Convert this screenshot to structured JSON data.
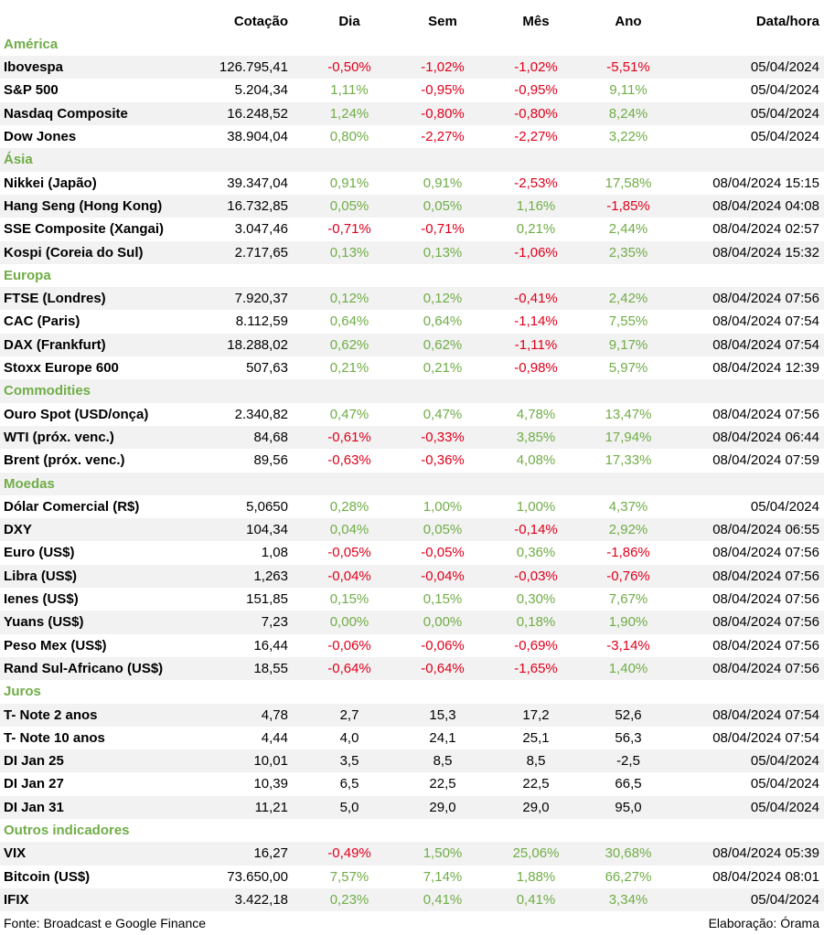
{
  "columns": {
    "cotacao": "Cotação",
    "dia": "Dia",
    "sem": "Sem",
    "mes": "Mês",
    "ano": "Ano",
    "data_hora": "Data/hora"
  },
  "colors": {
    "positive": "#70ad47",
    "negative": "#e0001b",
    "section": "#70ad47",
    "stripe": "#f2f2f2"
  },
  "sections": [
    {
      "title": "América",
      "rows": [
        {
          "name": "Ibovespa",
          "cotacao": "126.795,41",
          "dia": "-0,50%",
          "sem": "-1,02%",
          "mes": "-1,02%",
          "ano": "-5,51%",
          "data": "05/04/2024"
        },
        {
          "name": "S&P 500",
          "cotacao": "5.204,34",
          "dia": "1,11%",
          "sem": "-0,95%",
          "mes": "-0,95%",
          "ano": "9,11%",
          "data": "05/04/2024"
        },
        {
          "name": "Nasdaq Composite",
          "cotacao": "16.248,52",
          "dia": "1,24%",
          "sem": "-0,80%",
          "mes": "-0,80%",
          "ano": "8,24%",
          "data": "05/04/2024"
        },
        {
          "name": "Dow Jones",
          "cotacao": "38.904,04",
          "dia": "0,80%",
          "sem": "-2,27%",
          "mes": "-2,27%",
          "ano": "3,22%",
          "data": "05/04/2024"
        }
      ]
    },
    {
      "title": "Ásia",
      "rows": [
        {
          "name": "Nikkei (Japão)",
          "cotacao": "39.347,04",
          "dia": "0,91%",
          "sem": "0,91%",
          "mes": "-2,53%",
          "ano": "17,58%",
          "data": "08/04/2024 15:15"
        },
        {
          "name": "Hang Seng (Hong Kong)",
          "cotacao": "16.732,85",
          "dia": "0,05%",
          "sem": "0,05%",
          "mes": "1,16%",
          "ano": "-1,85%",
          "data": "08/04/2024 04:08"
        },
        {
          "name": "SSE Composite (Xangai)",
          "cotacao": "3.047,46",
          "dia": "-0,71%",
          "sem": "-0,71%",
          "mes": "0,21%",
          "ano": "2,44%",
          "data": "08/04/2024 02:57"
        },
        {
          "name": "Kospi (Coreia do Sul)",
          "cotacao": "2.717,65",
          "dia": "0,13%",
          "sem": "0,13%",
          "mes": "-1,06%",
          "ano": "2,35%",
          "data": "08/04/2024 15:32"
        }
      ]
    },
    {
      "title": "Europa",
      "rows": [
        {
          "name": "FTSE (Londres)",
          "cotacao": "7.920,37",
          "dia": "0,12%",
          "sem": "0,12%",
          "mes": "-0,41%",
          "ano": "2,42%",
          "data": "08/04/2024 07:56"
        },
        {
          "name": "CAC (Paris)",
          "cotacao": "8.112,59",
          "dia": "0,64%",
          "sem": "0,64%",
          "mes": "-1,14%",
          "ano": "7,55%",
          "data": "08/04/2024 07:54"
        },
        {
          "name": "DAX (Frankfurt)",
          "cotacao": "18.288,02",
          "dia": "0,62%",
          "sem": "0,62%",
          "mes": "-1,11%",
          "ano": "9,17%",
          "data": "08/04/2024 07:54"
        },
        {
          "name": "Stoxx Europe 600",
          "cotacao": "507,63",
          "dia": "0,21%",
          "sem": "0,21%",
          "mes": "-0,98%",
          "ano": "5,97%",
          "data": "08/04/2024 12:39"
        }
      ]
    },
    {
      "title": "Commodities",
      "rows": [
        {
          "name": "Ouro Spot (USD/onça)",
          "cotacao": "2.340,82",
          "dia": "0,47%",
          "sem": "0,47%",
          "mes": "4,78%",
          "ano": "13,47%",
          "data": "08/04/2024 07:56"
        },
        {
          "name": "WTI (próx. venc.)",
          "cotacao": "84,68",
          "dia": "-0,61%",
          "sem": "-0,33%",
          "mes": "3,85%",
          "ano": "17,94%",
          "data": "08/04/2024 06:44"
        },
        {
          "name": "Brent (próx. venc.)",
          "cotacao": "89,56",
          "dia": "-0,63%",
          "sem": "-0,36%",
          "mes": "4,08%",
          "ano": "17,33%",
          "data": "08/04/2024 07:59"
        }
      ]
    },
    {
      "title": "Moedas",
      "rows": [
        {
          "name": "Dólar Comercial (R$)",
          "cotacao": "5,0650",
          "dia": "0,28%",
          "sem": "1,00%",
          "mes": "1,00%",
          "ano": "4,37%",
          "data": "05/04/2024"
        },
        {
          "name": "DXY",
          "cotacao": "104,34",
          "dia": "0,04%",
          "sem": "0,05%",
          "mes": "-0,14%",
          "ano": "2,92%",
          "data": "08/04/2024 06:55"
        },
        {
          "name": "Euro (US$)",
          "cotacao": "1,08",
          "dia": "-0,05%",
          "sem": "-0,05%",
          "mes": "0,36%",
          "ano": "-1,86%",
          "data": "08/04/2024 07:56"
        },
        {
          "name": "Libra (US$)",
          "cotacao": "1,263",
          "dia": "-0,04%",
          "sem": "-0,04%",
          "mes": "-0,03%",
          "ano": "-0,76%",
          "data": "08/04/2024 07:56"
        },
        {
          "name": "Ienes (US$)",
          "cotacao": "151,85",
          "dia": "0,15%",
          "sem": "0,15%",
          "mes": "0,30%",
          "ano": "7,67%",
          "data": "08/04/2024 07:56"
        },
        {
          "name": "Yuans (US$)",
          "cotacao": "7,23",
          "dia": "0,00%",
          "sem": "0,00%",
          "mes": "0,18%",
          "ano": "1,90%",
          "data": "08/04/2024 07:56"
        },
        {
          "name": "Peso Mex (US$)",
          "cotacao": "16,44",
          "dia": "-0,06%",
          "sem": "-0,06%",
          "mes": "-0,69%",
          "ano": "-3,14%",
          "data": "08/04/2024 07:56"
        },
        {
          "name": "Rand Sul-Africano (US$)",
          "cotacao": "18,55",
          "dia": "-0,64%",
          "sem": "-0,64%",
          "mes": "-1,65%",
          "ano": "1,40%",
          "data": "08/04/2024 07:56"
        }
      ]
    },
    {
      "title": "Juros",
      "rows": [
        {
          "name": "T- Note 2 anos",
          "cotacao": "4,78",
          "dia": "2,7",
          "sem": "15,3",
          "mes": "17,2",
          "ano": "52,6",
          "data": "08/04/2024 07:54"
        },
        {
          "name": "T- Note 10 anos",
          "cotacao": "4,44",
          "dia": "4,0",
          "sem": "24,1",
          "mes": "25,1",
          "ano": "56,3",
          "data": "08/04/2024 07:54"
        },
        {
          "name": "DI Jan 25",
          "cotacao": "10,01",
          "dia": "3,5",
          "sem": "8,5",
          "mes": "8,5",
          "ano": "-2,5",
          "data": "05/04/2024"
        },
        {
          "name": "DI Jan 27",
          "cotacao": "10,39",
          "dia": "6,5",
          "sem": "22,5",
          "mes": "22,5",
          "ano": "66,5",
          "data": "05/04/2024"
        },
        {
          "name": "DI Jan 31",
          "cotacao": "11,21",
          "dia": "5,0",
          "sem": "29,0",
          "mes": "29,0",
          "ano": "95,0",
          "data": "05/04/2024"
        }
      ]
    },
    {
      "title": "Outros indicadores",
      "rows": [
        {
          "name": "VIX",
          "cotacao": "16,27",
          "dia": "-0,49%",
          "sem": "1,50%",
          "mes": "25,06%",
          "ano": "30,68%",
          "data": "08/04/2024 05:39"
        },
        {
          "name": "Bitcoin (US$)",
          "cotacao": "73.650,00",
          "dia": "7,57%",
          "sem": "7,14%",
          "mes": "1,88%",
          "ano": "66,27%",
          "data": "08/04/2024 08:01"
        },
        {
          "name": "IFIX",
          "cotacao": "3.422,18",
          "dia": "0,23%",
          "sem": "0,41%",
          "mes": "0,41%",
          "ano": "3,34%",
          "data": "05/04/2024"
        }
      ]
    }
  ],
  "footer": {
    "source": "Fonte: Broadcast e Google Finance",
    "credit": "Elaboração: Órama"
  }
}
